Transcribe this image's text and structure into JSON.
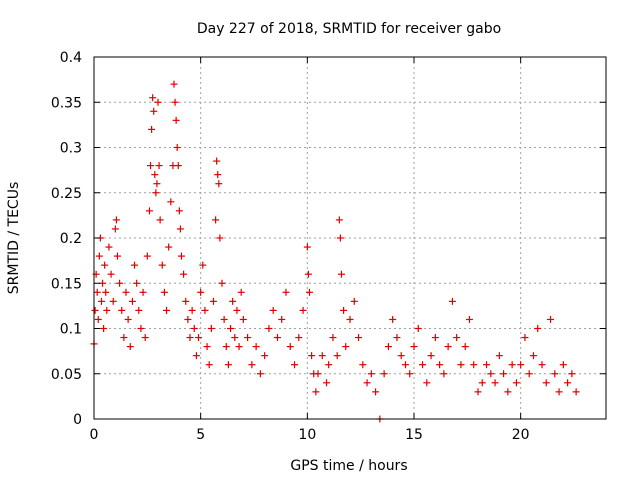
{
  "chart_data": {
    "type": "scatter",
    "title": "Day 227 of 2018, SRMTID for receiver gabo",
    "xlabel": "GPS time / hours",
    "ylabel": "SRMTID / TECUs",
    "xlim": [
      0,
      24
    ],
    "ylim": [
      0,
      0.4
    ],
    "x_ticks": [
      0,
      5,
      10,
      15,
      20
    ],
    "x_tick_labels": [
      "0",
      "5",
      "10",
      "15",
      "20"
    ],
    "y_ticks": [
      0,
      0.05,
      0.1,
      0.15,
      0.2,
      0.25,
      0.3,
      0.35,
      0.4
    ],
    "y_tick_labels": [
      "0",
      "0.05",
      "0.1",
      "0.15",
      "0.2",
      "0.25",
      "0.3",
      "0.35",
      "0.4"
    ],
    "grid": true,
    "marker": "+",
    "marker_color": "#e00000",
    "series": [
      {
        "name": "SRMTID",
        "points": [
          [
            0.0,
            0.083
          ],
          [
            0.05,
            0.12
          ],
          [
            0.1,
            0.16
          ],
          [
            0.15,
            0.14
          ],
          [
            0.2,
            0.11
          ],
          [
            0.25,
            0.18
          ],
          [
            0.3,
            0.2
          ],
          [
            0.35,
            0.13
          ],
          [
            0.4,
            0.15
          ],
          [
            0.45,
            0.1
          ],
          [
            0.5,
            0.17
          ],
          [
            0.55,
            0.14
          ],
          [
            0.6,
            0.12
          ],
          [
            0.7,
            0.19
          ],
          [
            0.8,
            0.16
          ],
          [
            0.9,
            0.13
          ],
          [
            1.0,
            0.21
          ],
          [
            1.05,
            0.22
          ],
          [
            1.1,
            0.18
          ],
          [
            1.2,
            0.15
          ],
          [
            1.3,
            0.12
          ],
          [
            1.4,
            0.09
          ],
          [
            1.5,
            0.14
          ],
          [
            1.6,
            0.11
          ],
          [
            1.7,
            0.08
          ],
          [
            1.8,
            0.13
          ],
          [
            1.9,
            0.17
          ],
          [
            2.0,
            0.15
          ],
          [
            2.1,
            0.12
          ],
          [
            2.2,
            0.1
          ],
          [
            2.3,
            0.14
          ],
          [
            2.4,
            0.09
          ],
          [
            2.5,
            0.18
          ],
          [
            2.6,
            0.23
          ],
          [
            2.65,
            0.28
          ],
          [
            2.7,
            0.32
          ],
          [
            2.75,
            0.355
          ],
          [
            2.8,
            0.34
          ],
          [
            2.85,
            0.27
          ],
          [
            2.9,
            0.25
          ],
          [
            2.95,
            0.26
          ],
          [
            3.0,
            0.35
          ],
          [
            3.05,
            0.28
          ],
          [
            3.1,
            0.22
          ],
          [
            3.2,
            0.17
          ],
          [
            3.3,
            0.14
          ],
          [
            3.4,
            0.12
          ],
          [
            3.5,
            0.19
          ],
          [
            3.6,
            0.24
          ],
          [
            3.7,
            0.28
          ],
          [
            3.75,
            0.37
          ],
          [
            3.8,
            0.35
          ],
          [
            3.85,
            0.33
          ],
          [
            3.9,
            0.3
          ],
          [
            3.95,
            0.28
          ],
          [
            4.0,
            0.23
          ],
          [
            4.05,
            0.21
          ],
          [
            4.1,
            0.18
          ],
          [
            4.2,
            0.16
          ],
          [
            4.3,
            0.13
          ],
          [
            4.4,
            0.11
          ],
          [
            4.5,
            0.09
          ],
          [
            4.6,
            0.12
          ],
          [
            4.7,
            0.1
          ],
          [
            4.8,
            0.07
          ],
          [
            4.9,
            0.09
          ],
          [
            5.0,
            0.14
          ],
          [
            5.1,
            0.17
          ],
          [
            5.2,
            0.12
          ],
          [
            5.3,
            0.08
          ],
          [
            5.4,
            0.06
          ],
          [
            5.5,
            0.1
          ],
          [
            5.6,
            0.13
          ],
          [
            5.7,
            0.22
          ],
          [
            5.75,
            0.285
          ],
          [
            5.8,
            0.27
          ],
          [
            5.85,
            0.26
          ],
          [
            5.9,
            0.2
          ],
          [
            6.0,
            0.15
          ],
          [
            6.1,
            0.11
          ],
          [
            6.2,
            0.08
          ],
          [
            6.3,
            0.06
          ],
          [
            6.4,
            0.1
          ],
          [
            6.5,
            0.13
          ],
          [
            6.6,
            0.09
          ],
          [
            6.7,
            0.12
          ],
          [
            6.8,
            0.08
          ],
          [
            6.9,
            0.14
          ],
          [
            7.0,
            0.11
          ],
          [
            7.2,
            0.09
          ],
          [
            7.4,
            0.06
          ],
          [
            7.6,
            0.08
          ],
          [
            7.8,
            0.05
          ],
          [
            8.0,
            0.07
          ],
          [
            8.2,
            0.1
          ],
          [
            8.4,
            0.12
          ],
          [
            8.6,
            0.09
          ],
          [
            8.8,
            0.11
          ],
          [
            9.0,
            0.14
          ],
          [
            9.2,
            0.08
          ],
          [
            9.4,
            0.06
          ],
          [
            9.6,
            0.09
          ],
          [
            9.8,
            0.12
          ],
          [
            10.0,
            0.19
          ],
          [
            10.05,
            0.16
          ],
          [
            10.1,
            0.14
          ],
          [
            10.2,
            0.07
          ],
          [
            10.3,
            0.05
          ],
          [
            10.4,
            0.03
          ],
          [
            10.5,
            0.05
          ],
          [
            10.7,
            0.07
          ],
          [
            10.9,
            0.04
          ],
          [
            11.0,
            0.06
          ],
          [
            11.2,
            0.09
          ],
          [
            11.4,
            0.07
          ],
          [
            11.5,
            0.22
          ],
          [
            11.55,
            0.2
          ],
          [
            11.6,
            0.16
          ],
          [
            11.7,
            0.12
          ],
          [
            11.8,
            0.08
          ],
          [
            12.0,
            0.11
          ],
          [
            12.2,
            0.13
          ],
          [
            12.4,
            0.09
          ],
          [
            12.6,
            0.06
          ],
          [
            12.8,
            0.04
          ],
          [
            13.0,
            0.05
          ],
          [
            13.2,
            0.03
          ],
          [
            13.4,
            0.0
          ],
          [
            13.6,
            0.05
          ],
          [
            13.8,
            0.08
          ],
          [
            14.0,
            0.11
          ],
          [
            14.2,
            0.09
          ],
          [
            14.4,
            0.07
          ],
          [
            14.6,
            0.06
          ],
          [
            14.8,
            0.05
          ],
          [
            15.0,
            0.08
          ],
          [
            15.2,
            0.1
          ],
          [
            15.4,
            0.06
          ],
          [
            15.6,
            0.04
          ],
          [
            15.8,
            0.07
          ],
          [
            16.0,
            0.09
          ],
          [
            16.2,
            0.06
          ],
          [
            16.4,
            0.05
          ],
          [
            16.6,
            0.08
          ],
          [
            16.8,
            0.13
          ],
          [
            17.0,
            0.09
          ],
          [
            17.2,
            0.06
          ],
          [
            17.4,
            0.08
          ],
          [
            17.6,
            0.11
          ],
          [
            17.8,
            0.06
          ],
          [
            18.0,
            0.03
          ],
          [
            18.2,
            0.04
          ],
          [
            18.4,
            0.06
          ],
          [
            18.6,
            0.05
          ],
          [
            18.8,
            0.04
          ],
          [
            19.0,
            0.07
          ],
          [
            19.2,
            0.05
          ],
          [
            19.4,
            0.03
          ],
          [
            19.6,
            0.06
          ],
          [
            19.8,
            0.04
          ],
          [
            20.0,
            0.06
          ],
          [
            20.2,
            0.09
          ],
          [
            20.4,
            0.05
          ],
          [
            20.6,
            0.07
          ],
          [
            20.8,
            0.1
          ],
          [
            21.0,
            0.06
          ],
          [
            21.2,
            0.04
          ],
          [
            21.4,
            0.11
          ],
          [
            21.6,
            0.05
          ],
          [
            21.8,
            0.03
          ],
          [
            22.0,
            0.06
          ],
          [
            22.2,
            0.04
          ],
          [
            22.4,
            0.05
          ],
          [
            22.6,
            0.03
          ]
        ]
      }
    ]
  }
}
